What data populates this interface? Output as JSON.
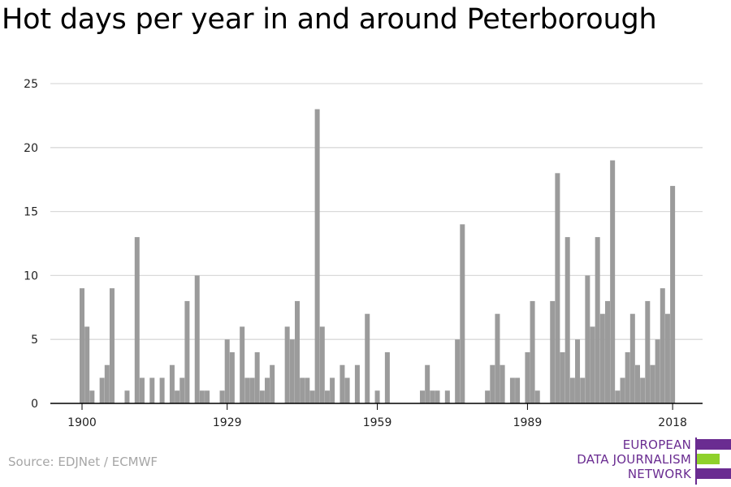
{
  "title": "Hot days per year in and around Peterborough",
  "source": "Source: EDJNet / ECMWF",
  "logo": {
    "line1": "EUROPEAN",
    "line2": "DATA JOURNALISM",
    "line3": "NETWORK"
  },
  "colors": {
    "bar": "#9b9b9b",
    "grid": "#d9d9d9",
    "axis": "#000000",
    "brand_purple": "#6a2c91",
    "brand_green": "#8fd12b"
  },
  "chart_data": {
    "type": "bar",
    "title": "Hot days per year in and around Peterborough",
    "xlabel": "",
    "ylabel": "",
    "ylim": [
      0,
      25
    ],
    "yticks": [
      0,
      5,
      10,
      15,
      20,
      25
    ],
    "xticks": [
      1900,
      1929,
      1959,
      1989,
      2018
    ],
    "x_start": 1900,
    "x_end": 2018,
    "values": [
      9,
      6,
      1,
      0,
      2,
      3,
      9,
      0,
      0,
      1,
      0,
      13,
      2,
      0,
      2,
      0,
      2,
      0,
      3,
      1,
      2,
      8,
      0,
      10,
      1,
      1,
      0,
      0,
      1,
      5,
      4,
      0,
      6,
      2,
      2,
      4,
      1,
      2,
      3,
      0,
      0,
      6,
      5,
      8,
      2,
      2,
      1,
      23,
      6,
      1,
      2,
      0,
      3,
      2,
      0,
      3,
      0,
      7,
      0,
      1,
      0,
      4,
      0,
      0,
      0,
      0,
      0,
      0,
      1,
      3,
      1,
      1,
      0,
      1,
      0,
      5,
      14,
      0,
      0,
      0,
      0,
      1,
      3,
      7,
      3,
      0,
      2,
      2,
      0,
      4,
      8,
      1,
      0,
      0,
      8,
      18,
      4,
      13,
      2,
      5,
      2,
      10,
      6,
      13,
      7,
      8,
      19,
      1,
      2,
      4,
      7,
      3,
      2,
      8,
      3,
      5,
      9,
      7,
      17
    ]
  }
}
